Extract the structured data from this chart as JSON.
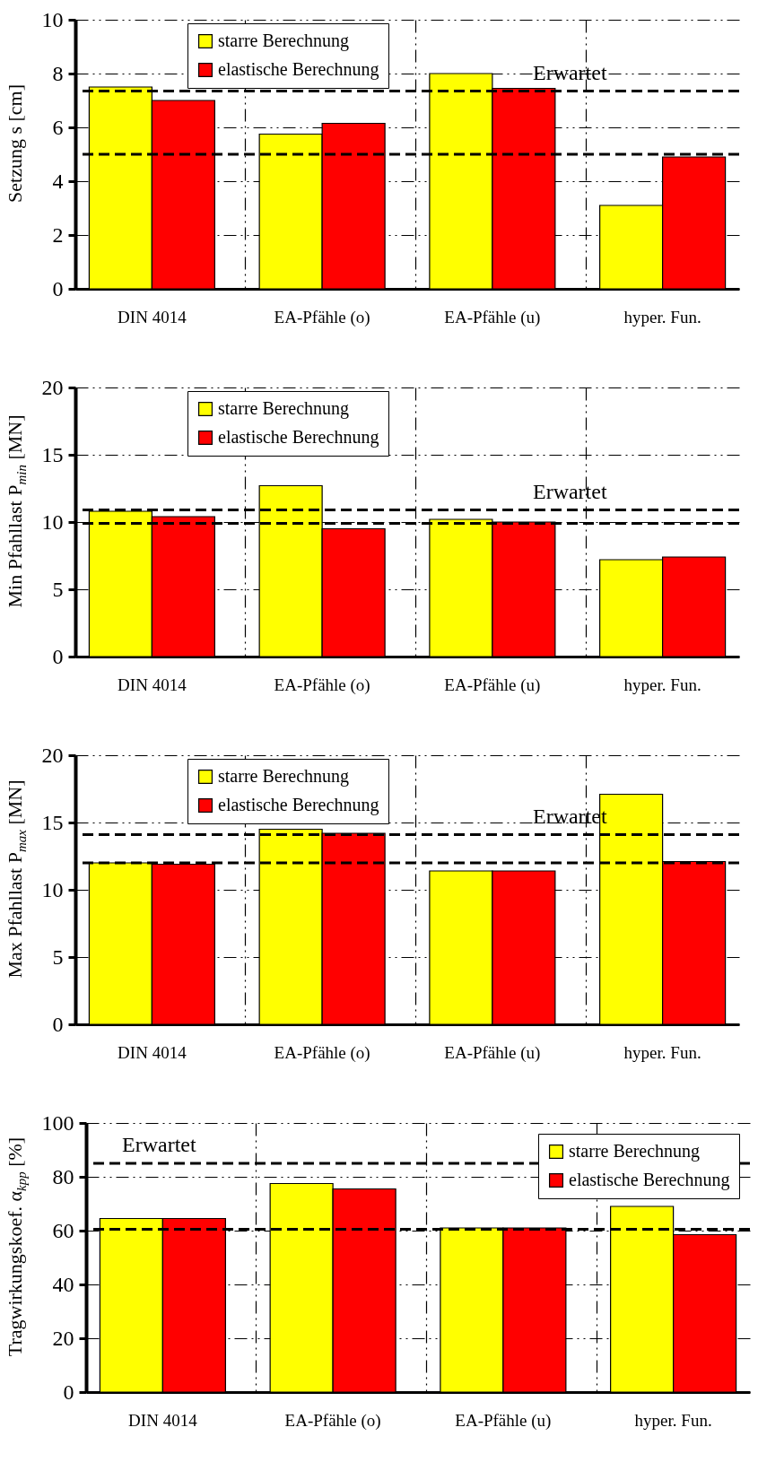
{
  "chart_data": [
    {
      "type": "bar",
      "categories": [
        "DIN 4014",
        "EA-Pfähle (o)",
        "EA-Pfähle (u)",
        "hyper. Fun."
      ],
      "ylabel": "Setzung s [cm]",
      "ylim": [
        0,
        10
      ],
      "yticks": [
        0,
        2,
        4,
        6,
        8,
        10
      ],
      "grid": true,
      "legend": "top left",
      "series": [
        {
          "name": "starre Berechnung",
          "color": "#ffff00",
          "values": [
            7.5,
            5.75,
            8.0,
            3.1
          ]
        },
        {
          "name": "elastische Berechnung",
          "color": "#ff0000",
          "values": [
            7.0,
            6.15,
            7.45,
            4.9
          ]
        }
      ],
      "ref_lines": [
        {
          "axis": "y",
          "value": 7.35,
          "line_style": "dashed"
        },
        {
          "axis": "y",
          "value": 5.0,
          "line_style": "dashed"
        }
      ],
      "annotations": [
        "Erwartet"
      ]
    },
    {
      "type": "bar",
      "categories": [
        "DIN 4014",
        "EA-Pfähle (o)",
        "EA-Pfähle (u)",
        "hyper. Fun."
      ],
      "ylabel": "Min Pfahllast P$_{min}$ [MN]",
      "ylim": [
        0,
        20
      ],
      "yticks": [
        0,
        5,
        10,
        15,
        20
      ],
      "grid": true,
      "legend": "top left",
      "series": [
        {
          "name": "starre Berechnung",
          "color": "#ffff00",
          "values": [
            10.8,
            12.7,
            10.2,
            7.2
          ]
        },
        {
          "name": "elastische Berechnung",
          "color": "#ff0000",
          "values": [
            10.4,
            9.5,
            10.0,
            7.4
          ]
        }
      ],
      "ref_lines": [
        {
          "axis": "y",
          "value": 10.9,
          "line_style": "dashed"
        },
        {
          "axis": "y",
          "value": 9.9,
          "line_style": "dashed"
        }
      ],
      "annotations": [
        "Erwartet"
      ]
    },
    {
      "type": "bar",
      "categories": [
        "DIN 4014",
        "EA-Pfähle (o)",
        "EA-Pfähle (u)",
        "hyper. Fun."
      ],
      "ylabel": "Max Pfahllast P$_{max}$ [MN]",
      "ylim": [
        0,
        20
      ],
      "yticks": [
        0,
        5,
        10,
        15,
        20
      ],
      "grid": true,
      "legend": "top left",
      "series": [
        {
          "name": "starre Berechnung",
          "color": "#ffff00",
          "values": [
            12.0,
            14.5,
            11.4,
            17.1
          ]
        },
        {
          "name": "elastische Berechnung",
          "color": "#ff0000",
          "values": [
            11.9,
            14.2,
            11.4,
            12.1
          ]
        }
      ],
      "ref_lines": [
        {
          "axis": "y",
          "value": 14.1,
          "line_style": "dashed"
        },
        {
          "axis": "y",
          "value": 12.0,
          "line_style": "dashed"
        }
      ],
      "annotations": [
        "Erwartet"
      ]
    },
    {
      "type": "bar",
      "categories": [
        "DIN 4014",
        "EA-Pfähle (o)",
        "EA-Pfähle (u)",
        "hyper. Fun."
      ],
      "ylabel": "Tragwirkungskoef. α$_{kpp}$ [%]",
      "ylim": [
        0,
        100
      ],
      "yticks": [
        0,
        20,
        40,
        60,
        80,
        100
      ],
      "grid": true,
      "legend": "top right",
      "series": [
        {
          "name": "starre Berechnung",
          "color": "#ffff00",
          "values": [
            64.5,
            77.5,
            61,
            69
          ]
        },
        {
          "name": "elastische Berechnung",
          "color": "#ff0000",
          "values": [
            64.5,
            75.5,
            61,
            58.5
          ]
        }
      ],
      "ref_lines": [
        {
          "axis": "y",
          "value": 85,
          "line_style": "dashed"
        },
        {
          "axis": "y",
          "value": 60.5,
          "line_style": "dashed"
        }
      ],
      "annotations": [
        "Erwartet"
      ]
    }
  ]
}
